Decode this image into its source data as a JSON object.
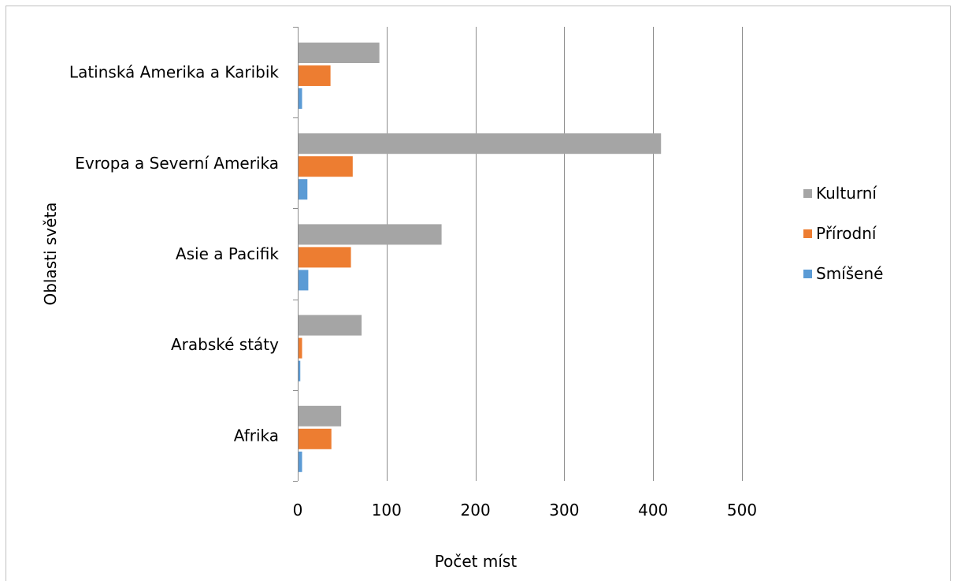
{
  "chart_data": {
    "type": "bar",
    "orientation": "horizontal",
    "categories": [
      "Latinská Amerika a Karibik",
      "Evropa a Severní Amerika",
      "Asie a Pacifik",
      "Arabské státy",
      "Afrika"
    ],
    "series": [
      {
        "name": "Kulturní",
        "color": "#a5a5a5",
        "values": [
          91,
          408,
          161,
          71,
          48
        ]
      },
      {
        "name": "Přírodní",
        "color": "#ed7d31",
        "values": [
          36,
          61,
          59,
          4,
          37
        ]
      },
      {
        "name": "Smíšené",
        "color": "#5b9bd5",
        "values": [
          4,
          10,
          11,
          2,
          4
        ]
      }
    ],
    "xlabel": "Počet míst",
    "ylabel": "Oblasti světa",
    "xlim": [
      0,
      500
    ],
    "xticks": [
      "0",
      "100",
      "200",
      "300",
      "400",
      "500"
    ],
    "grid": "vertical",
    "legend": "right"
  }
}
